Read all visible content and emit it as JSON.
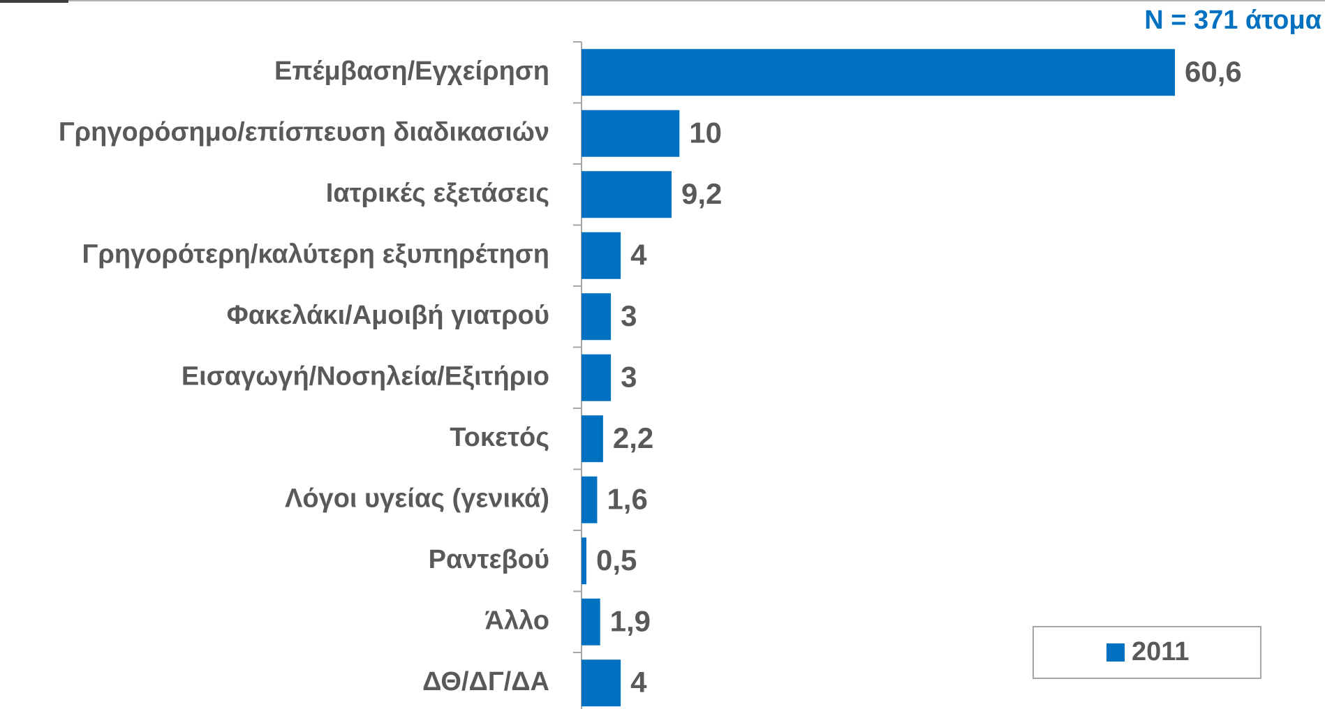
{
  "chart_data": {
    "type": "bar",
    "orientation": "horizontal",
    "annotation": "N = 371 άτομα",
    "categories": [
      "Επέμβαση/Εγχείρηση",
      "Γρηγορόσημο/επίσπευση διαδικασιών",
      "Ιατρικές εξετάσεις",
      "Γρηγορότερη/καλύτερη εξυπηρέτηση",
      "Φακελάκι/Αμοιβή γιατρού",
      "Εισαγωγή/Νοσηλεία/Εξιτήριο",
      "Τοκετός",
      "Λόγοι υγείας (γενικά)",
      "Ραντεβού",
      "Άλλο",
      "ΔΘ/ΔΓ/ΔΑ"
    ],
    "series": [
      {
        "name": "2011",
        "color": "#0070c0",
        "values": [
          60.6,
          10,
          9.2,
          4,
          3,
          3,
          2.2,
          1.6,
          0.5,
          1.9,
          4
        ],
        "value_labels": [
          "60,6",
          "10",
          "9,2",
          "4",
          "3",
          "3",
          "2,2",
          "1,6",
          "0,5",
          "1,9",
          "4"
        ]
      }
    ],
    "legend": "bottom-right"
  }
}
